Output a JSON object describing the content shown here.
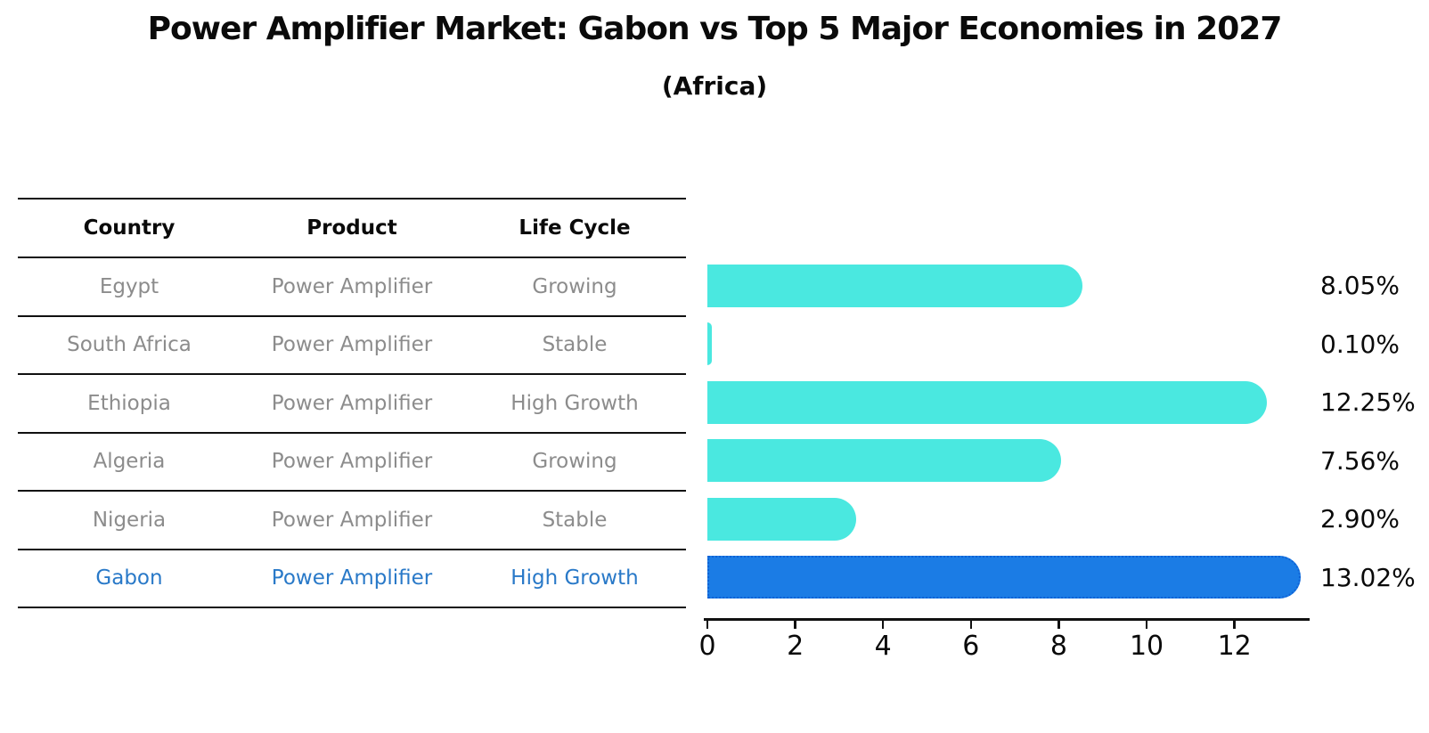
{
  "header": {
    "title": "Power Amplifier Market: Gabon vs Top 5 Major Economies in 2027",
    "subtitle": "(Africa)"
  },
  "table": {
    "columns": [
      "Country",
      "Product",
      "Life Cycle"
    ],
    "rows": [
      {
        "country": "Egypt",
        "product": "Power Amplifier",
        "life_cycle": "Growing"
      },
      {
        "country": "South Africa",
        "product": "Power Amplifier",
        "life_cycle": "Stable"
      },
      {
        "country": "Ethiopia",
        "product": "Power Amplifier",
        "life_cycle": "High Growth"
      },
      {
        "country": "Algeria",
        "product": "Power Amplifier",
        "life_cycle": "Growing"
      },
      {
        "country": "Nigeria",
        "product": "Power Amplifier",
        "life_cycle": "Stable"
      },
      {
        "country": "Gabon",
        "product": "Power Amplifier",
        "life_cycle": "High Growth"
      }
    ]
  },
  "chart_data": {
    "type": "bar",
    "orientation": "horizontal",
    "title": "Power Amplifier Market: Gabon vs Top 5 Major Economies in 2027",
    "subtitle": "(Africa)",
    "categories": [
      "Egypt",
      "South Africa",
      "Ethiopia",
      "Algeria",
      "Nigeria",
      "Gabon"
    ],
    "values": [
      8.05,
      0.1,
      12.25,
      7.56,
      2.9,
      13.02
    ],
    "value_labels": [
      "8.05%",
      "0.10%",
      "12.25%",
      "7.56%",
      "2.90%",
      "13.02%"
    ],
    "xlim": [
      0,
      13.71
    ],
    "x_ticks": [
      0,
      2,
      4,
      6,
      8,
      10,
      12
    ],
    "grid": false,
    "legend": false,
    "highlight_index": 5,
    "bar_color": "#4AE8E0",
    "highlight_bar_color": "#1B7CE5",
    "highlight_border_color": "#0E62D6",
    "highlight_text_color": "#2979C8"
  }
}
